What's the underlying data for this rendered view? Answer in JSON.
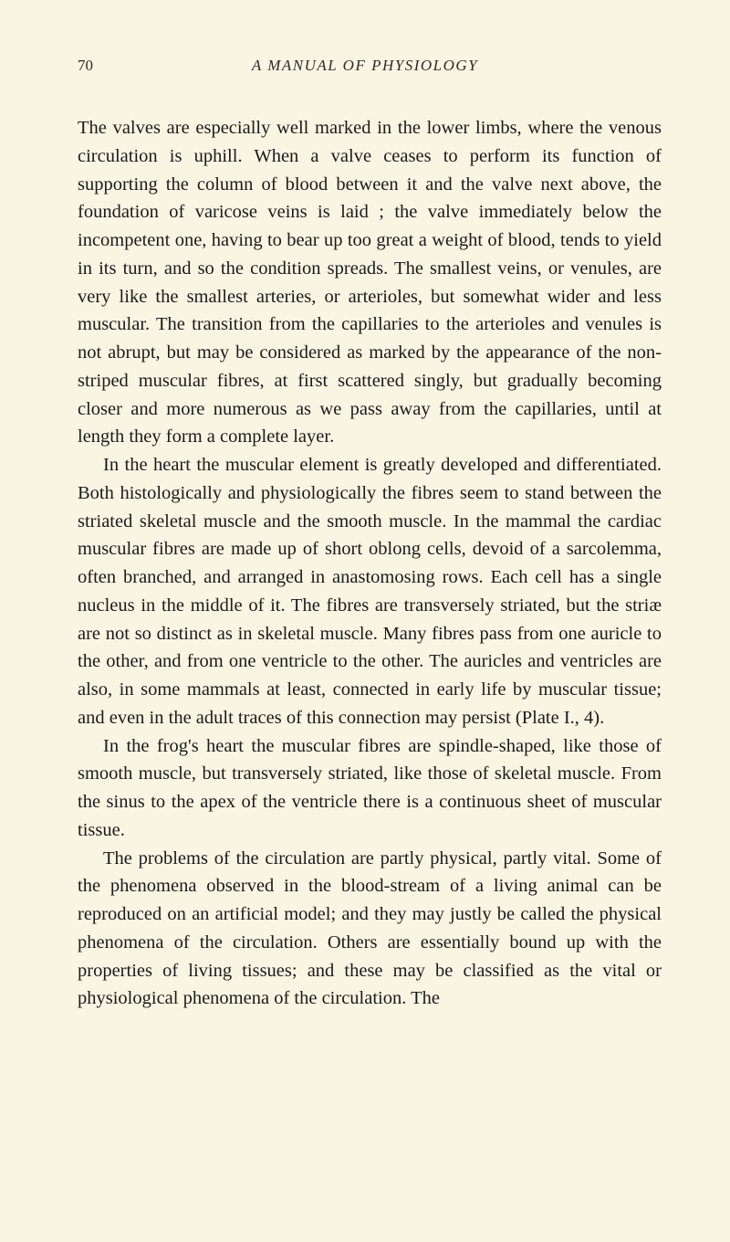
{
  "page": {
    "number": "70",
    "running_header": "A MANUAL OF PHYSIOLOGY",
    "background_color": "#f9f5e3",
    "text_color": "#1a1a1a",
    "font_family": "Georgia, serif",
    "body_fontsize": 20.5,
    "line_height": 1.5,
    "paragraphs": [
      {
        "indent": false,
        "text": "The valves are especially well marked in the lower limbs, where the venous circulation is uphill. When a valve ceases to perform its function of supporting the column of blood between it and the valve next above, the foundation of varicose veins is laid ; the valve immediately below the incompetent one, having to bear up too great a weight of blood, tends to yield in its turn, and so the condition spreads. The smallest veins, or venules, are very like the smallest arteries, or arterioles, but somewhat wider and less muscular. The transition from the capillaries to the arterioles and venules is not abrupt, but may be considered as marked by the appearance of the non-striped muscular fibres, at first scattered singly, but gradually becoming closer and more numerous as we pass away from the capillaries, until at length they form a complete layer."
      },
      {
        "indent": true,
        "text": "In the heart the muscular element is greatly developed and differentiated. Both histologically and physiologically the fibres seem to stand between the striated skeletal muscle and the smooth muscle. In the mammal the cardiac muscular fibres are made up of short oblong cells, devoid of a sarcolemma, often branched, and arranged in anastomosing rows. Each cell has a single nucleus in the middle of it. The fibres are transversely striated, but the striæ are not so distinct as in skeletal muscle. Many fibres pass from one auricle to the other, and from one ventricle to the other. The auricles and ventricles are also, in some mammals at least, connected in early life by muscular tissue; and even in the adult traces of this connection may persist (Plate I., 4)."
      },
      {
        "indent": true,
        "text": "In the frog's heart the muscular fibres are spindle-shaped, like those of smooth muscle, but transversely striated, like those of skeletal muscle. From the sinus to the apex of the ventricle there is a continuous sheet of muscular tissue."
      },
      {
        "indent": true,
        "text": "The problems of the circulation are partly physical, partly vital. Some of the phenomena observed in the blood-stream of a living animal can be reproduced on an artificial model; and they may justly be called the physical phenomena of the circulation. Others are essentially bound up with the properties of living tissues; and these may be classified as the vital or physiological phenomena of the circulation. The"
      }
    ]
  }
}
